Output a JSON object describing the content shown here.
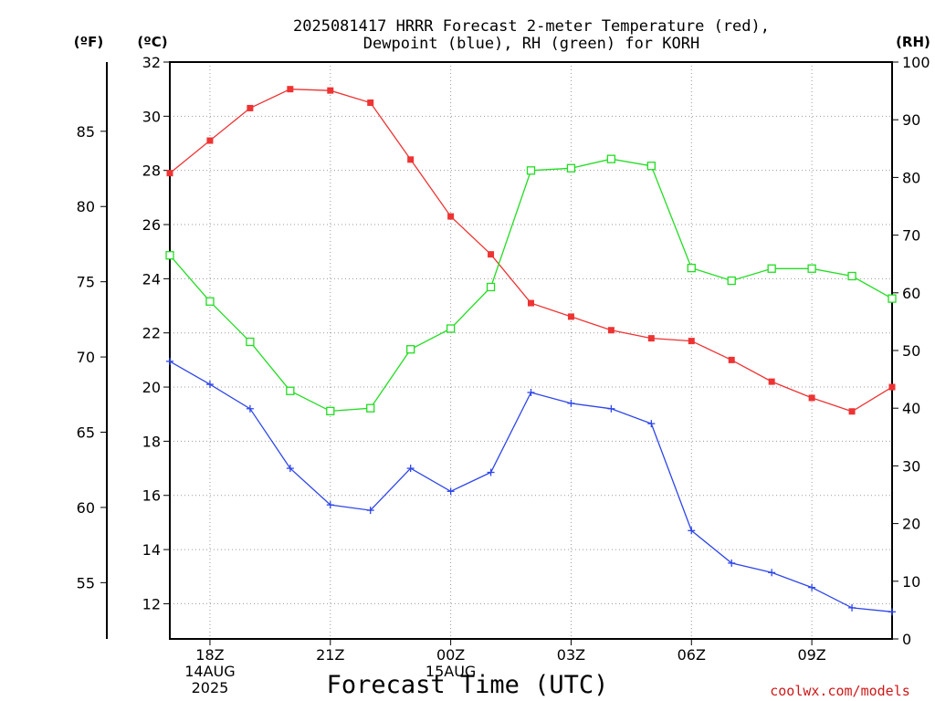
{
  "title_lines": [
    "2025081417 HRRR Forecast 2-meter Temperature (red),",
    "Dewpoint (blue), RH (green) for KORH"
  ],
  "units": {
    "fahrenheit": "(ºF)",
    "celsius": "(ºC)",
    "rh": "(RH)"
  },
  "x_title": "Forecast Time (UTC)",
  "credit": "coolwx.com/models",
  "colors": {
    "temperature": "#ee3333",
    "dewpoint": "#2e46e8",
    "rh": "#22dd22",
    "grid": "#9a9a9a"
  },
  "chart_data": {
    "type": "line",
    "x_hours": [
      17,
      18,
      19,
      20,
      21,
      22,
      23,
      24,
      25,
      26,
      27,
      28,
      29,
      30,
      31,
      32,
      33,
      34,
      35
    ],
    "x_ticks": [
      {
        "hour": 18,
        "lines": [
          "18Z",
          "14AUG",
          "2025"
        ]
      },
      {
        "hour": 21,
        "lines": [
          "21Z"
        ]
      },
      {
        "hour": 24,
        "lines": [
          "00Z",
          "15AUG"
        ]
      },
      {
        "hour": 27,
        "lines": [
          "03Z"
        ]
      },
      {
        "hour": 30,
        "lines": [
          "06Z"
        ]
      },
      {
        "hour": 33,
        "lines": [
          "09Z"
        ]
      }
    ],
    "xlim": [
      17,
      35
    ],
    "y_celsius": {
      "lim": [
        10.7,
        32
      ],
      "ticks": [
        12,
        14,
        16,
        18,
        20,
        22,
        24,
        26,
        28,
        30,
        32
      ]
    },
    "y_fahrenheit": {
      "ticks": [
        55,
        60,
        65,
        70,
        75,
        80,
        85
      ]
    },
    "y_rh": {
      "lim": [
        0,
        100
      ],
      "ticks": [
        0,
        10,
        20,
        30,
        40,
        50,
        60,
        70,
        80,
        90,
        100
      ]
    },
    "grid": true,
    "series": [
      {
        "key": "temperature",
        "axis": "celsius",
        "marker": "filled-square",
        "values": [
          27.9,
          29.1,
          30.3,
          31.0,
          30.95,
          30.5,
          28.4,
          26.3,
          24.9,
          23.1,
          22.6,
          22.1,
          21.8,
          21.7,
          21.0,
          20.2,
          19.6,
          19.1,
          20.0
        ]
      },
      {
        "key": "dewpoint",
        "axis": "celsius",
        "marker": "plus",
        "values": [
          20.95,
          20.1,
          19.2,
          17.0,
          15.65,
          15.45,
          17.0,
          16.15,
          16.85,
          19.8,
          19.4,
          19.2,
          18.65,
          14.7,
          13.5,
          13.15,
          12.6,
          11.85,
          11.7
        ]
      },
      {
        "key": "rh",
        "axis": "rh",
        "marker": "open-square",
        "values": [
          66.5,
          58.5,
          51.5,
          43.0,
          39.5,
          40.0,
          50.2,
          53.8,
          61.0,
          81.2,
          81.6,
          83.2,
          82.0,
          64.3,
          62.1,
          64.2,
          64.2,
          62.9,
          59.0
        ]
      }
    ]
  }
}
